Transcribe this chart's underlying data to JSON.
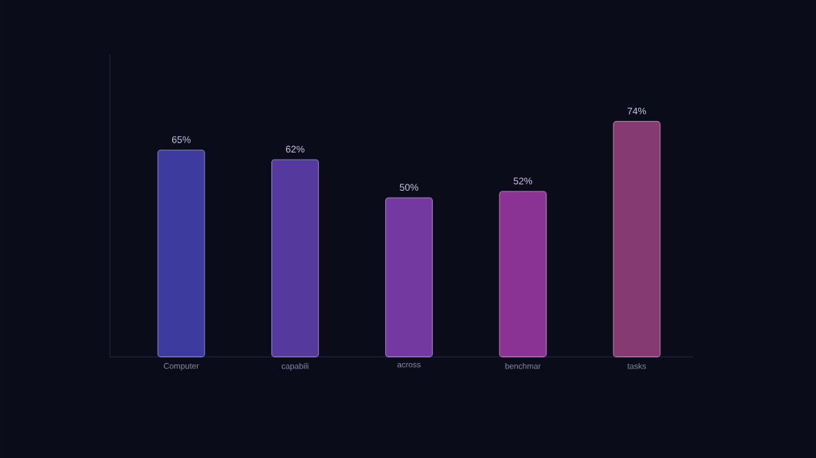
{
  "chart_data": {
    "type": "bar",
    "categories": [
      "Computer",
      "capabili",
      "across",
      "benchmar",
      "tasks"
    ],
    "values": [
      65,
      62,
      50,
      52,
      74
    ],
    "value_labels": [
      "65%",
      "62%",
      "50%",
      "52%",
      "74%"
    ],
    "colors": [
      "#3d3b9e",
      "#56399c",
      "#7339a0",
      "#8a3394",
      "#863a72"
    ]
  }
}
